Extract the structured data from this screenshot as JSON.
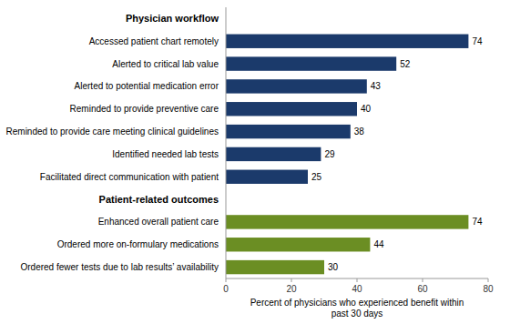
{
  "chart_data": {
    "type": "bar",
    "orientation": "horizontal",
    "categories": [
      "Physician workflow",
      "Accessed patient chart remotely",
      "Alerted to critical lab value",
      "Alerted to potential medication error",
      "Reminded to provide preventive care",
      "Reminded to provide care meeting clinical guidelines",
      "Identified needed lab tests",
      "Facilitated direct communication with patient",
      "Patient-related outcomes",
      "Enhanced overall patient care",
      "Ordered more on-formulary medications",
      "Ordered fewer tests due to lab results’ availability"
    ],
    "values": [
      null,
      74,
      52,
      43,
      40,
      38,
      29,
      25,
      null,
      74,
      44,
      30
    ],
    "colors": [
      null,
      "#1b3a6b",
      "#1b3a6b",
      "#1b3a6b",
      "#1b3a6b",
      "#1b3a6b",
      "#1b3a6b",
      "#1b3a6b",
      null,
      "#6b8e23",
      "#6b8e23",
      "#6b8e23"
    ],
    "xlabel": "Percent of physicians who experienced benefit within\npast 30 days",
    "xlim": [
      0,
      80
    ],
    "xticks": [
      0,
      20,
      40,
      60,
      80
    ],
    "grid": false,
    "data_labels": true
  }
}
